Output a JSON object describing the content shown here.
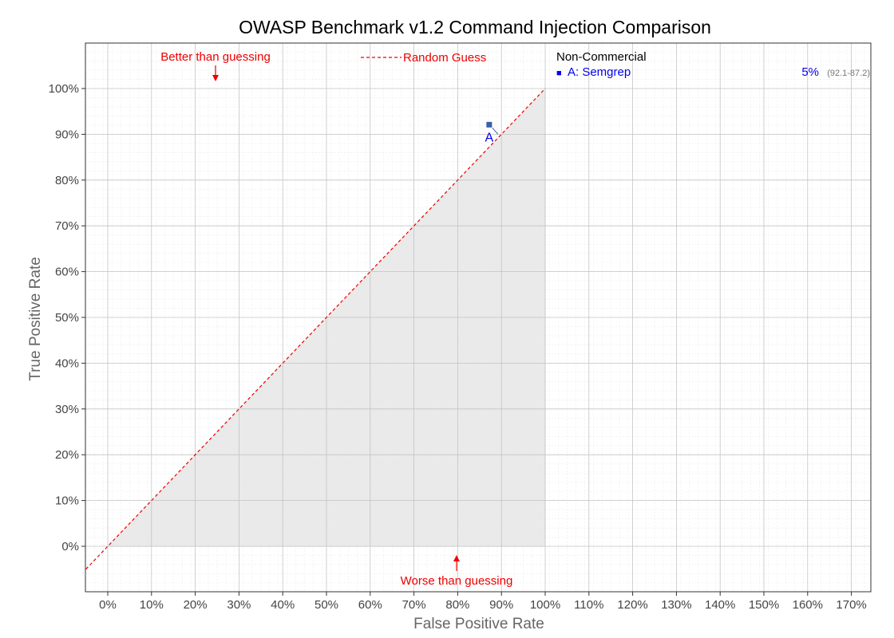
{
  "chart_data": {
    "type": "scatter",
    "title": "OWASP Benchmark v1.2 Command Injection Comparison",
    "xlabel": "False Positive Rate",
    "ylabel": "True Positive Rate",
    "xlim": [
      -5,
      175
    ],
    "ylim": [
      -10,
      110
    ],
    "x_ticks": [
      "0%",
      "10%",
      "20%",
      "30%",
      "40%",
      "50%",
      "60%",
      "70%",
      "80%",
      "90%",
      "100%",
      "110%",
      "120%",
      "130%",
      "140%",
      "150%",
      "160%",
      "170%"
    ],
    "y_ticks": [
      "0%",
      "10%",
      "20%",
      "30%",
      "40%",
      "50%",
      "60%",
      "70%",
      "80%",
      "90%",
      "100%"
    ],
    "grid": true,
    "random_guess_line": {
      "label": "Random Guess",
      "from": [
        -5,
        -5
      ],
      "to": [
        100,
        100
      ],
      "color": "#ee0000"
    },
    "shaded_region": {
      "description_label": "",
      "vertices": [
        [
          0,
          0
        ],
        [
          100,
          0
        ],
        [
          100,
          100
        ]
      ],
      "color": "#e6e6e6"
    },
    "annotations": [
      {
        "text": "Better than guessing",
        "arrow": "down"
      },
      {
        "text": "Worse than guessing",
        "arrow": "up"
      }
    ],
    "points": [
      {
        "label": "A",
        "name": "Semgrep",
        "x": 87.2,
        "y": 92.1,
        "color": "#3b5fa8"
      }
    ],
    "legend": {
      "title": "Non-Commercial",
      "position": "right",
      "items": [
        {
          "marker": "■",
          "text": "A: Semgrep",
          "score": "5%",
          "range": "(92.1-87.2)"
        }
      ]
    }
  }
}
